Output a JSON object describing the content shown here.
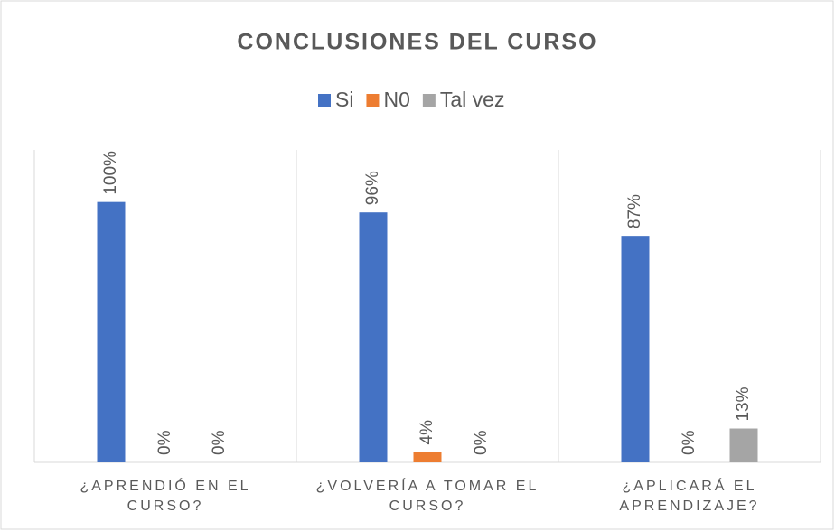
{
  "chart_data": {
    "type": "bar",
    "title": "CONCLUSIONES DEL CURSO",
    "categories": [
      "¿APRENDIÓ EN EL CURSO?",
      "¿VOLVERÍA A TOMAR EL CURSO?",
      "¿APLICARÁ EL APRENDIZAJE?"
    ],
    "series": [
      {
        "name": "Si",
        "color": "#4472c4",
        "values": [
          100,
          96,
          87
        ],
        "value_labels": [
          "100%",
          "96%",
          "87%"
        ]
      },
      {
        "name": "N0",
        "color": "#ed7d31",
        "values": [
          0,
          4,
          0
        ],
        "value_labels": [
          "0%",
          "4%",
          "0%"
        ]
      },
      {
        "name": "Tal vez",
        "color": "#a5a5a5",
        "values": [
          0,
          0,
          13
        ],
        "value_labels": [
          "0%",
          "0%",
          "13%"
        ]
      }
    ],
    "ylim": [
      0,
      120
    ],
    "legend": "top"
  }
}
